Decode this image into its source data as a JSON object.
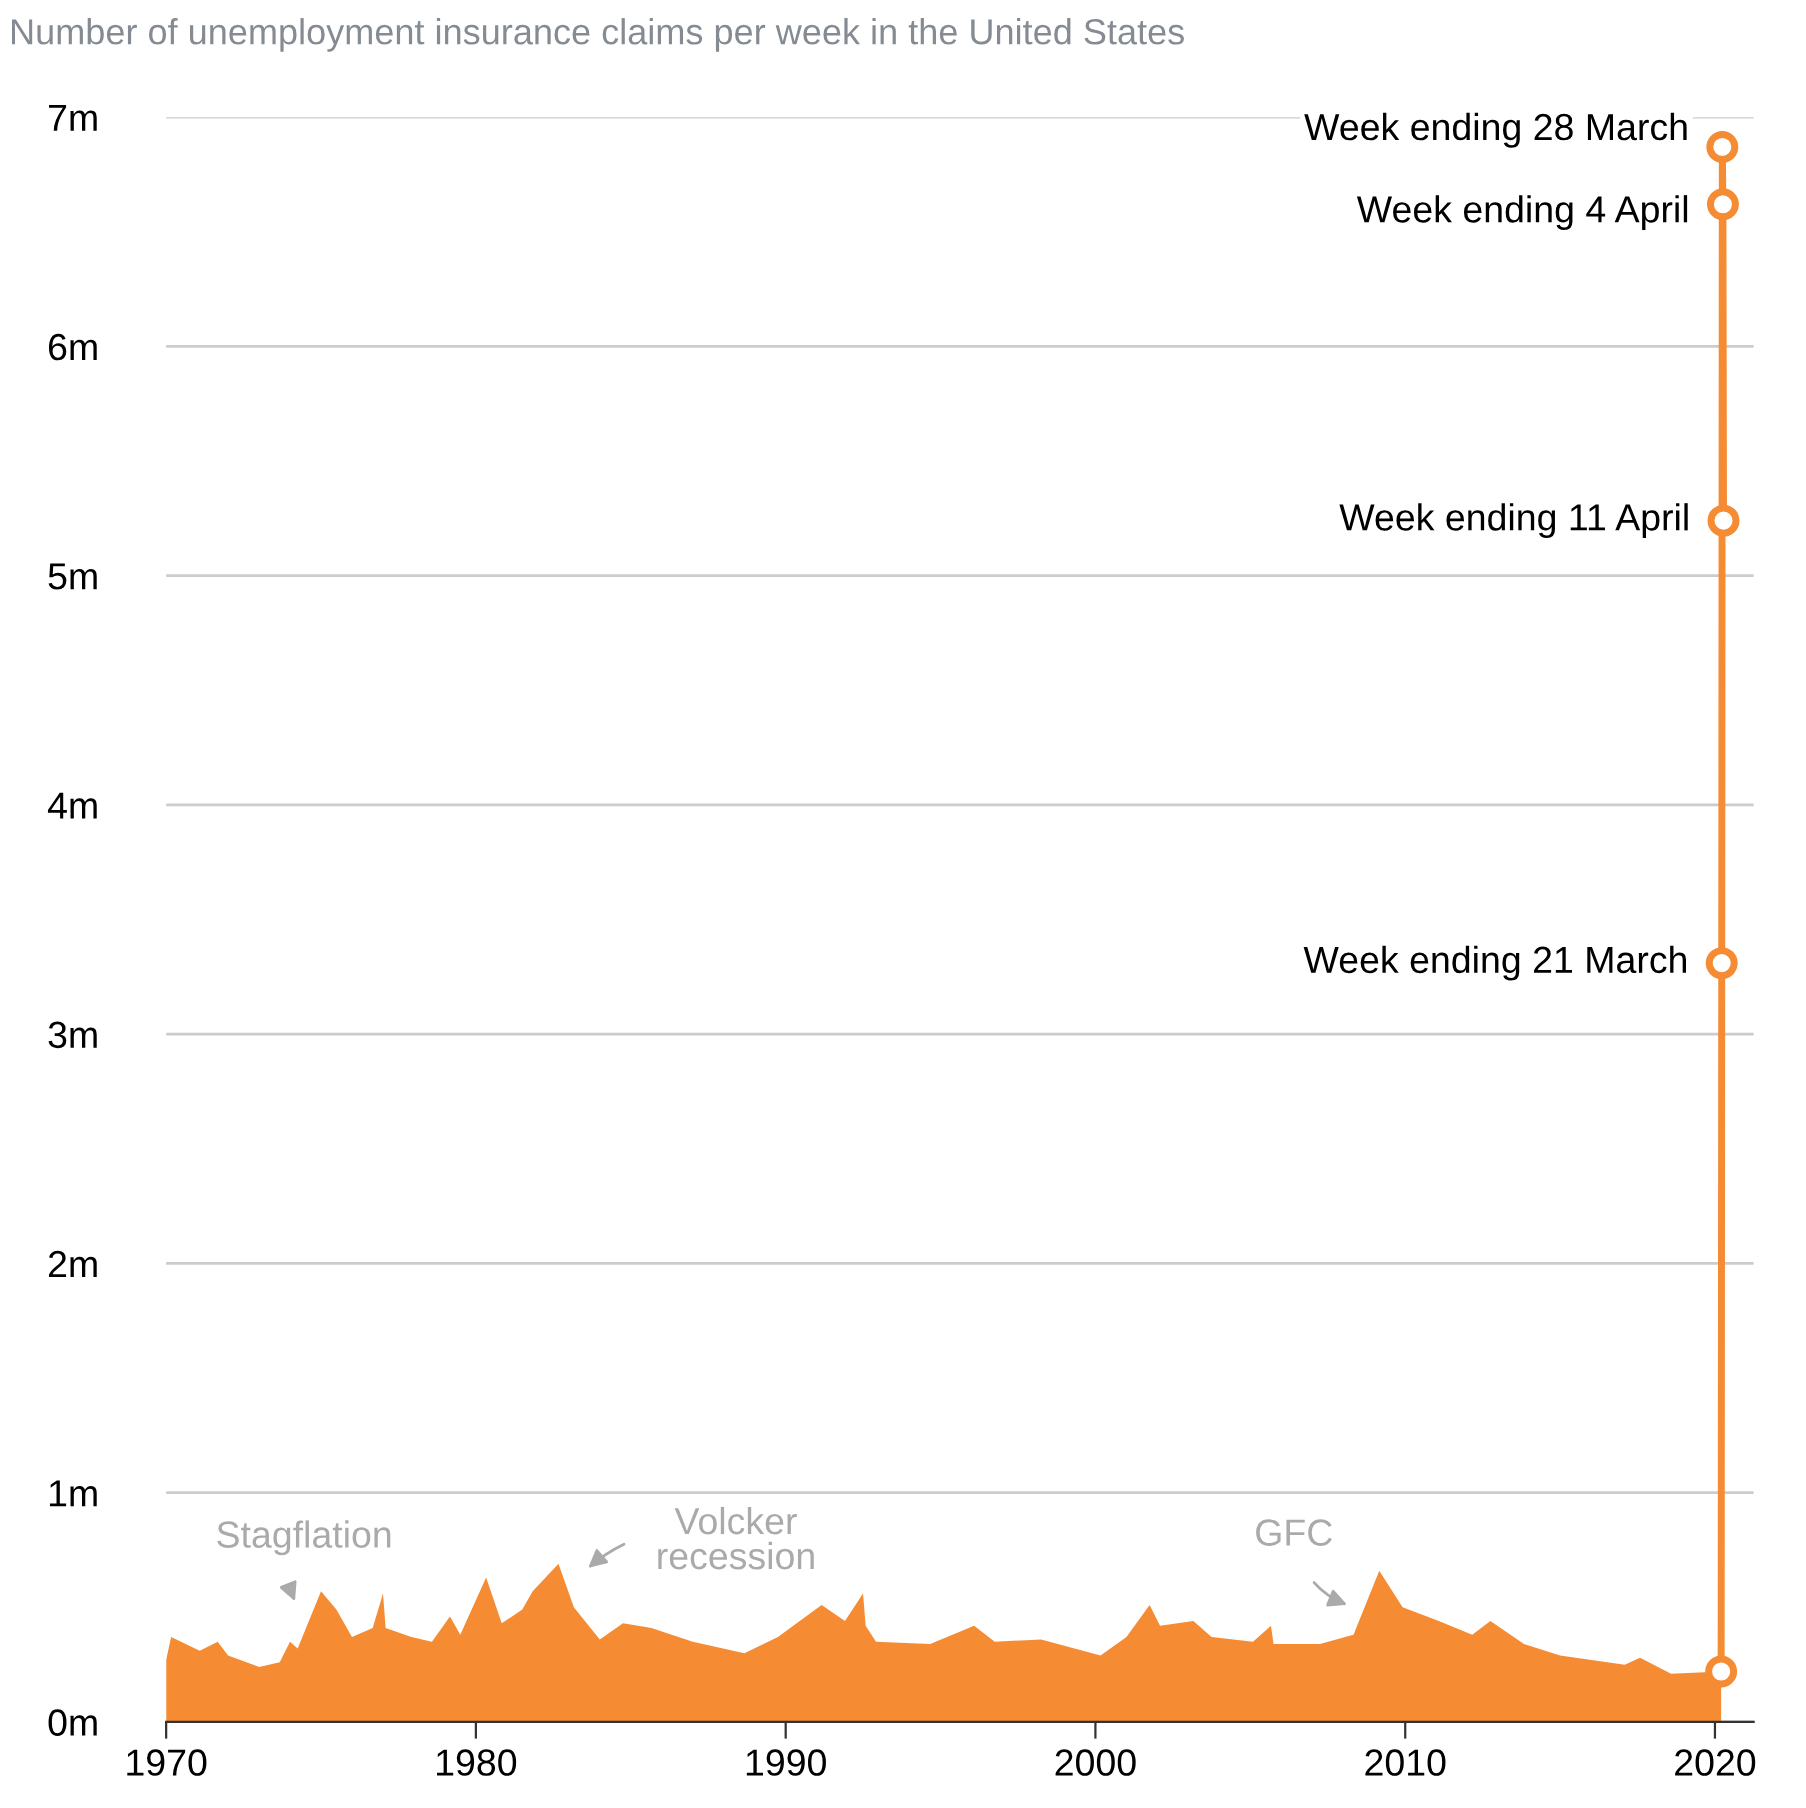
{
  "chart_data": {
    "type": "area",
    "title": "Number of unemployment insurance claims per week in the United States",
    "series": [
      {
        "color": "#f58b33",
        "x": [
          "1970-01",
          "1970-03",
          "1971-02",
          "1971-09",
          "1972-01",
          "1973-01",
          "1973-09",
          "1974-01",
          "1974-04",
          "1975-01",
          "1975-07",
          "1976-01",
          "1976-09",
          "1977-01",
          "1977-02",
          "1977-12",
          "1978-08",
          "1979-03",
          "1979-07",
          "1980-05",
          "1980-11",
          "1981-07",
          "1981-11",
          "1982-09",
          "1983-03",
          "1984-01",
          "1984-10",
          "1985-09",
          "1987-01",
          "1988-09",
          "1989-10",
          "1991-03",
          "1991-12",
          "1992-07",
          "1992-08",
          "1992-12",
          "1994-09",
          "1996-02",
          "1996-10",
          "1998-04",
          "2000-03",
          "2001-01",
          "2001-10",
          "2002-02",
          "2003-03",
          "2003-10",
          "2005-02",
          "2005-09",
          "2005-10",
          "2007-04",
          "2008-05",
          "2009-03",
          "2009-12",
          "2011-02",
          "2012-03",
          "2012-10",
          "2013-11",
          "2015-01",
          "2017-02",
          "2017-08",
          "2018-08",
          "2020-03-14"
        ],
        "values": [
          0.27,
          0.37,
          0.31,
          0.35,
          0.29,
          0.24,
          0.26,
          0.35,
          0.32,
          0.57,
          0.49,
          0.37,
          0.41,
          0.56,
          0.41,
          0.37,
          0.35,
          0.46,
          0.38,
          0.63,
          0.43,
          0.49,
          0.57,
          0.69,
          0.5,
          0.36,
          0.43,
          0.41,
          0.35,
          0.3,
          0.37,
          0.51,
          0.44,
          0.56,
          0.42,
          0.35,
          0.34,
          0.42,
          0.35,
          0.36,
          0.29,
          0.37,
          0.51,
          0.42,
          0.44,
          0.37,
          0.35,
          0.42,
          0.34,
          0.34,
          0.38,
          0.66,
          0.5,
          0.44,
          0.38,
          0.44,
          0.34,
          0.29,
          0.25,
          0.28,
          0.21,
          0.22
        ]
      },
      {
        "type": "line",
        "color": "#f58b33",
        "marker": "circle",
        "x": [
          "2020-03-14",
          "2020-03-21",
          "2020-03-28",
          "2020-04-04",
          "2020-04-11"
        ],
        "values": [
          0.22,
          3.31,
          6.87,
          6.62,
          5.24
        ]
      }
    ],
    "annotations": [
      {
        "text": "Week ending 21 March",
        "x": "2020-03-21",
        "y": 3.31
      },
      {
        "text": "Week ending 28 March",
        "x": "2020-03-28",
        "y": 6.87
      },
      {
        "text": "Week ending 4 April",
        "x": "2020-04-04",
        "y": 6.62
      },
      {
        "text": "Week ending 11 April",
        "x": "2020-04-11",
        "y": 5.24
      },
      "Stagflation",
      "Volcker\nrecession",
      "GFC"
    ],
    "xlim": [
      "1970-01",
      "2021-04"
    ],
    "xticks": [
      {
        "value": "1970",
        "label": "1970"
      },
      {
        "value": "1980",
        "label": "1980"
      },
      {
        "value": "1990",
        "label": "1990"
      },
      {
        "value": "2000",
        "label": "2000"
      },
      {
        "value": "2010",
        "label": "2010"
      },
      {
        "value": "2020",
        "label": "2020"
      }
    ],
    "ylim": [
      0,
      7
    ],
    "yticks": [
      {
        "value": 0,
        "label": "0m"
      },
      {
        "value": 1,
        "label": "1m"
      },
      {
        "value": 2,
        "label": "2m"
      },
      {
        "value": 3,
        "label": "3m"
      },
      {
        "value": 4,
        "label": "4m"
      },
      {
        "value": 5,
        "label": "5m"
      },
      {
        "value": 6,
        "label": "6m"
      },
      {
        "value": 7,
        "label": "7m"
      }
    ],
    "grid": "y",
    "legend": false
  }
}
